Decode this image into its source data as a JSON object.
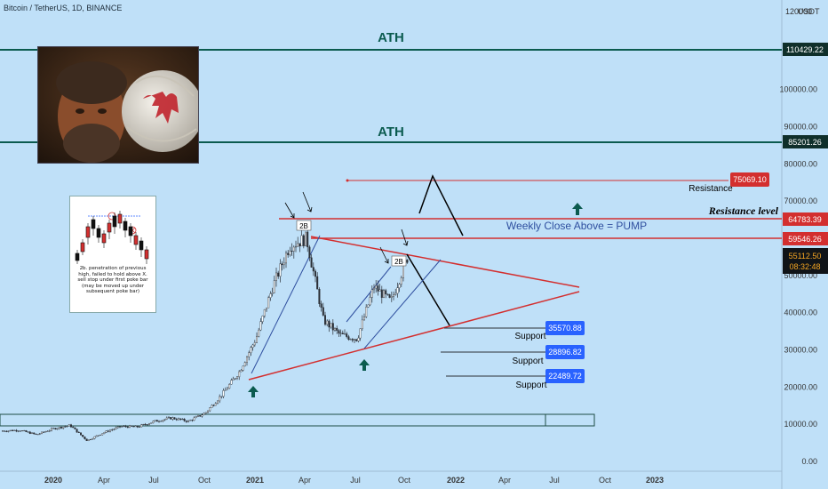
{
  "header": {
    "symbol_line": "Bitcoin / TetherUS, 1D, BINANCE",
    "currency": "USDT"
  },
  "colors": {
    "background": "#bfe0f8",
    "candle": "#2b2f36",
    "ath_line": "#0b5b4f",
    "resistance_red": "#d32f2f",
    "support_blue": "#2962ff",
    "trend_blue": "#2f4f9f",
    "arrow_green": "#0b5b4f",
    "label_dark": "#0f2f2a",
    "label_orange_text": "#f5a623"
  },
  "annotations": {
    "ath_top": "ATH",
    "ath_bottom": "ATH",
    "weekly_close": "Weekly Close Above = PUMP",
    "resistance_level": "Resistance level",
    "resistance": "Resistance",
    "support_1": "Support",
    "support_2": "Support",
    "support_3": "Support",
    "twob_left": "2B",
    "twob_right": "2B"
  },
  "price_labels": {
    "ath_1": "110429.22",
    "ath_2": "85201.26",
    "resistance": "75069.10",
    "resistance_level": "64783.39",
    "weekly_close": "59546.26",
    "current_price": "55112.50",
    "countdown": "08:32:48",
    "support_1": "35570.88",
    "support_2": "28896.82",
    "support_3": "22489.72"
  },
  "inset": {
    "caption": "2b. penetration of previous high, failed to hold above\nX. sell stop under first poke bar (may be moved up under subsequent poke bar)"
  },
  "chart_data": {
    "type": "line",
    "title": "Bitcoin / TetherUS, 1D, BINANCE",
    "xlabel": "",
    "ylabel": "",
    "ylim": [
      0,
      120000
    ],
    "y_ticks": [
      "0.00",
      "10000.00",
      "20000.00",
      "30000.00",
      "40000.00",
      "50000.00",
      "60000.00",
      "70000.00",
      "80000.00",
      "90000.00",
      "100000.00",
      "120000"
    ],
    "x_ticks": [
      "2020",
      "Apr",
      "Jul",
      "Oct",
      "2021",
      "Apr",
      "Jul",
      "Oct",
      "2022",
      "Apr",
      "Jul",
      "Oct",
      "2023"
    ],
    "grid": false,
    "series": [
      {
        "values_x": [
          "2019-10",
          "2019-11",
          "2019-12",
          "2020-01",
          "2020-02",
          "2020-03",
          "2020-04",
          "2020-05",
          "2020-06",
          "2020-07",
          "2020-08",
          "2020-09",
          "2020-10",
          "2020-11",
          "2020-12",
          "2021-01",
          "2021-02",
          "2021-03",
          "2021-04",
          "2021-05",
          "2021-06",
          "2021-07",
          "2021-08",
          "2021-09",
          "2021-10"
        ],
        "values": [
          8200,
          8400,
          7200,
          8800,
          9700,
          5600,
          7800,
          9400,
          9300,
          10800,
          11700,
          10800,
          13000,
          18000,
          24000,
          33000,
          47000,
          58000,
          60000,
          38000,
          34000,
          33000,
          47000,
          43000,
          55112
        ]
      }
    ],
    "levels": [
      {
        "label": "ATH",
        "value": 110429.22
      },
      {
        "label": "ATH",
        "value": 85201.26
      },
      {
        "label": "Resistance",
        "value": 75069.1
      },
      {
        "label": "Resistance level",
        "value": 64783.39
      },
      {
        "label": "Weekly Close Above = PUMP",
        "value": 59546.26
      },
      {
        "label": "Support",
        "value": 35570.88
      },
      {
        "label": "Support",
        "value": 28896.82
      },
      {
        "label": "Support",
        "value": 22489.72
      }
    ],
    "current_price": 55112.5
  }
}
